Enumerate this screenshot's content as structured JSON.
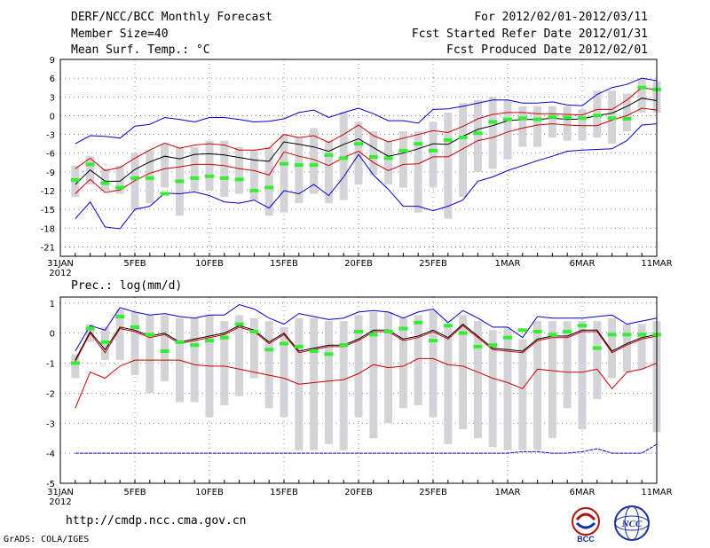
{
  "header": {
    "title": "DERF/NCC/BCC Monthly Forecast",
    "member_size": "Member Size=40",
    "variable": "Mean Surf. Temp.: °C",
    "period": "For 2012/02/01-2012/03/11",
    "started": "Fcst Started Refer Date 2012/01/31",
    "produced": "Fcst Produced Date 2012/02/01"
  },
  "footer": {
    "url": "http://cmdp.ncc.cma.gov.cn",
    "credit": "GrADS: COLA/IGES",
    "logo1_text": "BCC",
    "logo2_text": "NCC"
  },
  "colors": {
    "max_line": "#0000cc",
    "spread_line": "#cc0000",
    "mean_line": "#000000",
    "median_mark": "#33ee33",
    "box": "#d4d4d8"
  },
  "chart_data": [
    {
      "type": "line",
      "title": "Mean Surf. Temp.: °C",
      "ylim": [
        -22.5,
        9
      ],
      "yticks": [
        9,
        6,
        3,
        0,
        -3,
        -6,
        -9,
        -12,
        -15,
        -18,
        -21
      ],
      "x_ticks": [
        {
          "day": 0,
          "label": "31JAN",
          "sub": "2012"
        },
        {
          "day": 5,
          "label": "5FEB"
        },
        {
          "day": 10,
          "label": "10FEB"
        },
        {
          "day": 15,
          "label": "15FEB"
        },
        {
          "day": 20,
          "label": "20FEB"
        },
        {
          "day": 25,
          "label": "25FEB"
        },
        {
          "day": 30,
          "label": "1MAR"
        },
        {
          "day": 35,
          "label": "6MAR"
        },
        {
          "day": 40,
          "label": "11MAR"
        }
      ],
      "x": [
        1,
        2,
        3,
        4,
        5,
        6,
        7,
        8,
        9,
        10,
        11,
        12,
        13,
        14,
        15,
        16,
        17,
        18,
        19,
        20,
        21,
        22,
        23,
        24,
        25,
        26,
        27,
        28,
        29,
        30,
        31,
        32,
        33,
        34,
        35,
        36,
        37,
        38,
        39,
        40
      ],
      "series": [
        {
          "name": "max",
          "values": [
            -4.5,
            -3.2,
            -3.3,
            -3.6,
            -1.7,
            -1.4,
            -0.3,
            -0.6,
            -1.0,
            -0.3,
            -0.3,
            -0.6,
            -1.0,
            -0.9,
            -0.5,
            0.5,
            0.9,
            -0.3,
            0.5,
            1.2,
            0.3,
            -0.8,
            -0.8,
            -1.2,
            1.0,
            1.1,
            1.5,
            2.0,
            2.5,
            2.5,
            2.0,
            2.0,
            2.2,
            1.7,
            1.6,
            3.4,
            4.5,
            5.0,
            6.0,
            5.6
          ]
        },
        {
          "name": "upper",
          "values": [
            -8.5,
            -6.8,
            -8.8,
            -8.3,
            -6.8,
            -5.5,
            -4.4,
            -5.2,
            -4.7,
            -4.5,
            -4.7,
            -5.5,
            -5.5,
            -5.2,
            -3.0,
            -3.5,
            -3.2,
            -4.3,
            -3.0,
            -1.5,
            -3.2,
            -4.2,
            -3.6,
            -3.0,
            -2.4,
            -2.7,
            -1.7,
            -0.5,
            0.2,
            0.5,
            0.5,
            0.3,
            0.3,
            0.2,
            0.1,
            1.0,
            1.0,
            2.5,
            4.5,
            4.1
          ]
        },
        {
          "name": "mean",
          "values": [
            -11.0,
            -8.7,
            -10.5,
            -10.5,
            -8.6,
            -7.4,
            -6.5,
            -6.9,
            -6.2,
            -6.1,
            -6.3,
            -6.7,
            -7.1,
            -7.3,
            -4.2,
            -4.6,
            -5.0,
            -5.7,
            -4.6,
            -3.7,
            -5.1,
            -6.5,
            -6.0,
            -5.3,
            -4.5,
            -4.6,
            -3.3,
            -2.2,
            -1.6,
            -0.8,
            -0.6,
            -0.6,
            -0.4,
            -0.6,
            -0.5,
            0.0,
            0.4,
            1.5,
            2.8,
            2.4
          ]
        },
        {
          "name": "lower",
          "values": [
            -12.5,
            -10.2,
            -12.3,
            -11.9,
            -10.4,
            -9.2,
            -8.5,
            -8.2,
            -7.8,
            -7.8,
            -8.0,
            -8.5,
            -8.8,
            -9.5,
            -5.8,
            -6.5,
            -7.0,
            -8.0,
            -6.7,
            -5.7,
            -7.5,
            -8.8,
            -7.8,
            -7.7,
            -6.6,
            -6.6,
            -5.3,
            -4.0,
            -3.5,
            -2.6,
            -2.0,
            -1.5,
            -1.3,
            -1.5,
            -1.6,
            -1.6,
            -0.7,
            0.0,
            1.2,
            0.9
          ]
        },
        {
          "name": "min",
          "values": [
            -16.5,
            -13.8,
            -17.8,
            -18.1,
            -15.0,
            -14.5,
            -12.4,
            -12.5,
            -12.2,
            -12.8,
            -13.8,
            -14.0,
            -13.5,
            -14.8,
            -12.0,
            -12.5,
            -11.0,
            -12.8,
            -9.8,
            -6.2,
            -9.5,
            -11.8,
            -14.5,
            -14.5,
            -15.2,
            -14.5,
            -13.5,
            -10.5,
            -9.8,
            -8.8,
            -8.0,
            -7.2,
            -6.5,
            -5.7,
            -5.5,
            -5.4,
            -5.3,
            -4.0,
            -1.5,
            -1.3
          ]
        },
        {
          "name": "box_top",
          "values": [
            -8.0,
            -6.5,
            -8.5,
            -8.0,
            -6.0,
            -5.5,
            -4.5,
            -5.0,
            -5.0,
            -4.0,
            -4.0,
            -5.0,
            -5.5,
            -5.0,
            -3.0,
            -3.5,
            -2.0,
            -4.0,
            0.5,
            -1.0,
            -2.5,
            -4.0,
            -2.5,
            -2.5,
            -1.0,
            0.5,
            2.0,
            2.5,
            3.0,
            2.5,
            1.5,
            1.5,
            1.5,
            1.5,
            1.0,
            4.0,
            4.0,
            3.5,
            6.0,
            5.5
          ]
        },
        {
          "name": "box_bottom",
          "values": [
            -13.0,
            -11.0,
            -12.0,
            -12.5,
            -15.0,
            -14.0,
            -11.5,
            -16.0,
            -12.0,
            -12.0,
            -13.0,
            -12.5,
            -13.5,
            -16.0,
            -15.5,
            -14.0,
            -12.5,
            -14.0,
            -13.5,
            -11.0,
            -9.5,
            -11.0,
            -11.5,
            -15.5,
            -11.5,
            -16.5,
            -13.0,
            -9.0,
            -8.5,
            -7.0,
            -5.0,
            -5.0,
            -3.5,
            -4.0,
            -4.0,
            -3.5,
            -4.5,
            -2.5,
            0.5,
            0.5
          ]
        },
        {
          "name": "median",
          "values": [
            -10.3,
            -7.8,
            -10.8,
            -11.5,
            -10.0,
            -10.0,
            -12.5,
            -10.5,
            -10.0,
            -9.7,
            -10.0,
            -10.2,
            -12.0,
            -11.5,
            -7.7,
            -7.9,
            -7.9,
            -6.3,
            -6.8,
            -4.5,
            -6.6,
            -6.8,
            -5.6,
            -4.5,
            -5.6,
            -3.9,
            -3.5,
            -2.8,
            -1.0,
            -0.6,
            -0.4,
            -0.6,
            -0.2,
            -0.3,
            -0.4,
            0.0,
            -0.4,
            -0.5,
            4.5,
            4.2
          ]
        }
      ]
    },
    {
      "type": "line",
      "title": "Prec.: log(mm/d)",
      "ylim": [
        -5,
        1.2
      ],
      "yticks": [
        1,
        0,
        -1,
        -2,
        -3,
        -4,
        -5
      ],
      "x_ticks": [
        {
          "day": 0,
          "label": "31JAN",
          "sub": "2012"
        },
        {
          "day": 5,
          "label": "5FEB"
        },
        {
          "day": 10,
          "label": "10FEB"
        },
        {
          "day": 15,
          "label": "15FEB"
        },
        {
          "day": 20,
          "label": "20FEB"
        },
        {
          "day": 25,
          "label": "25FEB"
        },
        {
          "day": 30,
          "label": "1MAR"
        },
        {
          "day": 35,
          "label": "6MAR"
        },
        {
          "day": 40,
          "label": "11MAR"
        }
      ],
      "x": [
        1,
        2,
        3,
        4,
        5,
        6,
        7,
        8,
        9,
        10,
        11,
        12,
        13,
        14,
        15,
        16,
        17,
        18,
        19,
        20,
        21,
        22,
        23,
        24,
        25,
        26,
        27,
        28,
        29,
        30,
        31,
        32,
        33,
        34,
        35,
        36,
        37,
        38,
        39,
        40
      ],
      "series": [
        {
          "name": "max",
          "values": [
            -0.6,
            0.25,
            0.1,
            0.85,
            0.7,
            0.6,
            0.65,
            0.55,
            0.5,
            0.6,
            0.6,
            0.95,
            0.8,
            0.5,
            0.3,
            0.65,
            0.55,
            0.45,
            0.5,
            0.7,
            0.75,
            0.7,
            0.5,
            0.7,
            0.8,
            0.35,
            0.75,
            0.5,
            0.2,
            0.2,
            -0.15,
            0.55,
            0.5,
            0.5,
            0.5,
            0.55,
            0.6,
            0.3,
            0.4,
            0.5
          ]
        },
        {
          "name": "mean",
          "values": [
            -0.9,
            0.05,
            -0.55,
            0.2,
            0.1,
            -0.1,
            0.0,
            -0.3,
            -0.2,
            -0.1,
            0.0,
            0.25,
            0.1,
            -0.3,
            0.0,
            -0.6,
            -0.5,
            -0.4,
            -0.4,
            -0.2,
            0.1,
            0.1,
            -0.2,
            -0.1,
            0.1,
            -0.15,
            0.3,
            -0.1,
            -0.5,
            -0.55,
            -0.6,
            -0.2,
            -0.1,
            -0.1,
            0.1,
            0.1,
            -0.6,
            -0.35,
            -0.15,
            -0.05
          ]
        },
        {
          "name": "upper",
          "values": [
            -0.95,
            0.0,
            -0.65,
            0.15,
            0.05,
            -0.15,
            -0.05,
            -0.35,
            -0.25,
            -0.15,
            -0.05,
            0.2,
            0.05,
            -0.35,
            -0.05,
            -0.65,
            -0.55,
            -0.45,
            -0.45,
            -0.25,
            0.05,
            0.05,
            -0.25,
            -0.15,
            0.05,
            -0.2,
            0.25,
            -0.15,
            -0.55,
            -0.6,
            -0.65,
            -0.25,
            -0.15,
            -0.15,
            0.05,
            0.05,
            -0.65,
            -0.4,
            -0.2,
            -0.1
          ]
        },
        {
          "name": "lower",
          "values": [
            -2.5,
            -1.3,
            -1.5,
            -1.1,
            -0.9,
            -0.9,
            -0.9,
            -0.9,
            -1.05,
            -1.1,
            -1.1,
            -1.2,
            -1.3,
            -1.4,
            -1.5,
            -1.7,
            -1.65,
            -1.6,
            -1.55,
            -1.35,
            -1.05,
            -1.15,
            -1.1,
            -0.85,
            -0.85,
            -1.05,
            -1.1,
            -1.3,
            -1.5,
            -1.65,
            -1.85,
            -1.2,
            -1.25,
            -1.3,
            -1.3,
            -1.2,
            -1.85,
            -1.3,
            -1.2,
            -1.0
          ]
        },
        {
          "name": "min",
          "values": [
            -4.0,
            -4.0,
            -4.0,
            -4.0,
            -4.0,
            -4.0,
            -4.0,
            -4.0,
            -4.0,
            -4.0,
            -4.0,
            -4.0,
            -4.0,
            -4.0,
            -4.0,
            -4.0,
            -4.0,
            -4.0,
            -4.0,
            -4.0,
            -4.0,
            -4.0,
            -4.0,
            -4.0,
            -4.0,
            -4.0,
            -4.0,
            -4.0,
            -4.0,
            -4.0,
            -3.95,
            -3.95,
            -4.0,
            -4.0,
            -3.95,
            -3.85,
            -4.0,
            -4.0,
            -4.0,
            -3.7
          ]
        },
        {
          "name": "box_top",
          "values": [
            -0.7,
            0.3,
            0.2,
            0.8,
            0.7,
            0.6,
            0.6,
            0.5,
            0.5,
            0.6,
            0.4,
            0.6,
            0.5,
            0.4,
            0.2,
            0.5,
            0.5,
            0.4,
            0.4,
            0.6,
            0.7,
            0.7,
            0.5,
            0.6,
            0.75,
            0.3,
            0.6,
            0.4,
            0.1,
            0.2,
            -0.2,
            0.4,
            0.4,
            0.4,
            0.4,
            0.4,
            0.5,
            0.3,
            0.3,
            0.4
          ]
        },
        {
          "name": "box_bottom",
          "values": [
            -1.5,
            -0.3,
            -0.9,
            -0.9,
            -1.4,
            -2.0,
            -1.6,
            -2.3,
            -2.3,
            -2.8,
            -2.4,
            -2.1,
            -1.5,
            -2.5,
            -2.8,
            -3.9,
            -3.9,
            -3.7,
            -3.9,
            -2.8,
            -3.5,
            -3.0,
            -2.5,
            -2.4,
            -2.8,
            -3.7,
            -3.2,
            -3.5,
            -3.8,
            -3.9,
            -3.9,
            -3.9,
            -3.5,
            -2.5,
            -3.2,
            -2.2,
            -1.5,
            -1.3,
            -1.2,
            -3.3
          ]
        },
        {
          "name": "median",
          "values": [
            -1.0,
            0.15,
            -0.3,
            0.55,
            0.2,
            -0.05,
            -0.6,
            -0.3,
            -0.4,
            -0.25,
            -0.15,
            0.3,
            0.05,
            -0.55,
            -0.35,
            -0.45,
            -0.6,
            -0.7,
            -0.4,
            0.05,
            -0.05,
            0.05,
            0.15,
            0.35,
            -0.25,
            0.25,
            0.0,
            -0.45,
            -0.4,
            -0.15,
            0.1,
            0.05,
            -0.05,
            0.05,
            0.25,
            -0.5,
            -0.05,
            -0.05,
            -0.05,
            -0.05
          ]
        }
      ]
    }
  ]
}
